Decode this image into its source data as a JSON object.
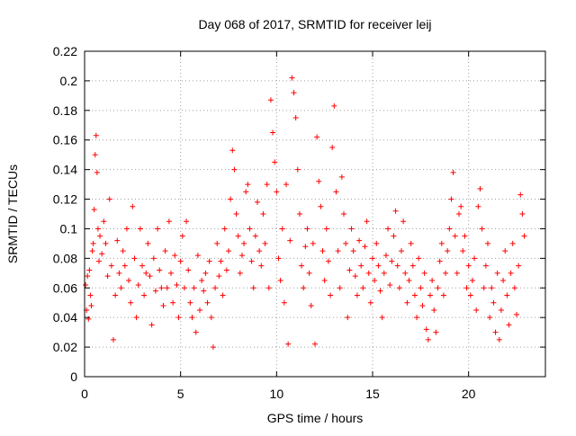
{
  "chart_data": {
    "type": "scatter",
    "title": "Day 068 of 2017, SRMTID for receiver leij",
    "xlabel": "GPS time / hours",
    "ylabel": "SRMTID / TECUs",
    "xlim": [
      0,
      24
    ],
    "ylim": [
      0,
      0.22
    ],
    "xticks": [
      0,
      5,
      10,
      15,
      20
    ],
    "xtick_labels": [
      "0",
      "5",
      "10",
      "15",
      "20"
    ],
    "yticks": [
      0,
      0.02,
      0.04,
      0.06,
      0.08,
      0.1,
      0.12,
      0.14,
      0.16,
      0.18,
      0.2,
      0.22
    ],
    "ytick_labels": [
      "0",
      "0.02",
      "0.04",
      "0.06",
      "0.08",
      "0.1",
      "0.12",
      "0.14",
      "0.16",
      "0.18",
      "0.2",
      "0.22"
    ],
    "grid": true,
    "legend": "none",
    "marker": "+",
    "marker_color": "#ff0000",
    "series": [
      {
        "points": [
          [
            0.05,
            0.062
          ],
          [
            0.1,
            0.045
          ],
          [
            0.15,
            0.068
          ],
          [
            0.2,
            0.039
          ],
          [
            0.25,
            0.072
          ],
          [
            0.3,
            0.055
          ],
          [
            0.35,
            0.048
          ],
          [
            0.4,
            0.085
          ],
          [
            0.45,
            0.09
          ],
          [
            0.5,
            0.113
          ],
          [
            0.55,
            0.15
          ],
          [
            0.6,
            0.163
          ],
          [
            0.65,
            0.138
          ],
          [
            0.7,
            0.1
          ],
          [
            0.75,
            0.078
          ],
          [
            0.8,
            0.095
          ],
          [
            0.9,
            0.083
          ],
          [
            1.0,
            0.105
          ],
          [
            1.1,
            0.09
          ],
          [
            1.2,
            0.068
          ],
          [
            1.3,
            0.12
          ],
          [
            1.4,
            0.075
          ],
          [
            1.5,
            0.025
          ],
          [
            1.6,
            0.055
          ],
          [
            1.7,
            0.092
          ],
          [
            1.8,
            0.07
          ],
          [
            1.9,
            0.06
          ],
          [
            2.0,
            0.085
          ],
          [
            2.1,
            0.075
          ],
          [
            2.2,
            0.1
          ],
          [
            2.3,
            0.065
          ],
          [
            2.4,
            0.05
          ],
          [
            2.5,
            0.115
          ],
          [
            2.6,
            0.08
          ],
          [
            2.7,
            0.04
          ],
          [
            2.8,
            0.062
          ],
          [
            2.9,
            0.1
          ],
          [
            3.0,
            0.075
          ],
          [
            3.1,
            0.055
          ],
          [
            3.2,
            0.07
          ],
          [
            3.3,
            0.09
          ],
          [
            3.4,
            0.068
          ],
          [
            3.5,
            0.035
          ],
          [
            3.6,
            0.08
          ],
          [
            3.7,
            0.058
          ],
          [
            3.8,
            0.1
          ],
          [
            3.9,
            0.072
          ],
          [
            4.0,
            0.06
          ],
          [
            4.1,
            0.048
          ],
          [
            4.2,
            0.085
          ],
          [
            4.3,
            0.06
          ],
          [
            4.4,
            0.105
          ],
          [
            4.5,
            0.07
          ],
          [
            4.6,
            0.05
          ],
          [
            4.7,
            0.082
          ],
          [
            4.8,
            0.062
          ],
          [
            4.9,
            0.04
          ],
          [
            5.0,
            0.078
          ],
          [
            5.1,
            0.095
          ],
          [
            5.2,
            0.06
          ],
          [
            5.3,
            0.105
          ],
          [
            5.4,
            0.072
          ],
          [
            5.5,
            0.05
          ],
          [
            5.6,
            0.04
          ],
          [
            5.7,
            0.06
          ],
          [
            5.8,
            0.03
          ],
          [
            5.9,
            0.082
          ],
          [
            6.0,
            0.045
          ],
          [
            6.1,
            0.065
          ],
          [
            6.2,
            0.058
          ],
          [
            6.3,
            0.07
          ],
          [
            6.4,
            0.05
          ],
          [
            6.5,
            0.078
          ],
          [
            6.6,
            0.04
          ],
          [
            6.7,
            0.02
          ],
          [
            6.8,
            0.06
          ],
          [
            6.9,
            0.09
          ],
          [
            7.0,
            0.068
          ],
          [
            7.1,
            0.078
          ],
          [
            7.2,
            0.055
          ],
          [
            7.3,
            0.1
          ],
          [
            7.4,
            0.072
          ],
          [
            7.5,
            0.085
          ],
          [
            7.6,
            0.12
          ],
          [
            7.7,
            0.153
          ],
          [
            7.8,
            0.14
          ],
          [
            7.9,
            0.11
          ],
          [
            8.0,
            0.095
          ],
          [
            8.1,
            0.07
          ],
          [
            8.2,
            0.082
          ],
          [
            8.3,
            0.09
          ],
          [
            8.4,
            0.125
          ],
          [
            8.5,
            0.13
          ],
          [
            8.6,
            0.1
          ],
          [
            8.7,
            0.078
          ],
          [
            8.8,
            0.06
          ],
          [
            8.9,
            0.095
          ],
          [
            9.0,
            0.118
          ],
          [
            9.1,
            0.085
          ],
          [
            9.2,
            0.075
          ],
          [
            9.3,
            0.11
          ],
          [
            9.4,
            0.09
          ],
          [
            9.5,
            0.13
          ],
          [
            9.6,
            0.06
          ],
          [
            9.7,
            0.187
          ],
          [
            9.8,
            0.165
          ],
          [
            9.9,
            0.145
          ],
          [
            10.0,
            0.125
          ],
          [
            10.1,
            0.08
          ],
          [
            10.2,
            0.065
          ],
          [
            10.3,
            0.1
          ],
          [
            10.4,
            0.05
          ],
          [
            10.5,
            0.13
          ],
          [
            10.6,
            0.022
          ],
          [
            10.7,
            0.092
          ],
          [
            10.8,
            0.202
          ],
          [
            10.9,
            0.192
          ],
          [
            11.0,
            0.175
          ],
          [
            11.1,
            0.14
          ],
          [
            11.2,
            0.11
          ],
          [
            11.3,
            0.075
          ],
          [
            11.4,
            0.06
          ],
          [
            11.5,
            0.088
          ],
          [
            11.6,
            0.1
          ],
          [
            11.7,
            0.07
          ],
          [
            11.8,
            0.048
          ],
          [
            11.9,
            0.09
          ],
          [
            12.0,
            0.022
          ],
          [
            12.1,
            0.162
          ],
          [
            12.2,
            0.132
          ],
          [
            12.3,
            0.115
          ],
          [
            12.4,
            0.085
          ],
          [
            12.5,
            0.065
          ],
          [
            12.6,
            0.1
          ],
          [
            12.7,
            0.078
          ],
          [
            12.8,
            0.055
          ],
          [
            12.9,
            0.155
          ],
          [
            13.0,
            0.183
          ],
          [
            13.1,
            0.125
          ],
          [
            13.2,
            0.085
          ],
          [
            13.3,
            0.06
          ],
          [
            13.4,
            0.135
          ],
          [
            13.5,
            0.11
          ],
          [
            13.6,
            0.09
          ],
          [
            13.7,
            0.04
          ],
          [
            13.8,
            0.072
          ],
          [
            13.9,
            0.1
          ],
          [
            14.0,
            0.085
          ],
          [
            14.1,
            0.068
          ],
          [
            14.2,
            0.055
          ],
          [
            14.3,
            0.092
          ],
          [
            14.4,
            0.075
          ],
          [
            14.5,
            0.06
          ],
          [
            14.6,
            0.088
          ],
          [
            14.7,
            0.105
          ],
          [
            14.8,
            0.07
          ],
          [
            14.9,
            0.05
          ],
          [
            15.0,
            0.08
          ],
          [
            15.1,
            0.065
          ],
          [
            15.2,
            0.09
          ],
          [
            15.3,
            0.075
          ],
          [
            15.4,
            0.058
          ],
          [
            15.5,
            0.04
          ],
          [
            15.6,
            0.07
          ],
          [
            15.7,
            0.082
          ],
          [
            15.8,
            0.1
          ],
          [
            15.9,
            0.062
          ],
          [
            16.0,
            0.078
          ],
          [
            16.1,
            0.095
          ],
          [
            16.2,
            0.112
          ],
          [
            16.3,
            0.075
          ],
          [
            16.4,
            0.06
          ],
          [
            16.5,
            0.085
          ],
          [
            16.6,
            0.105
          ],
          [
            16.7,
            0.07
          ],
          [
            16.8,
            0.05
          ],
          [
            16.9,
            0.065
          ],
          [
            17.0,
            0.09
          ],
          [
            17.1,
            0.075
          ],
          [
            17.2,
            0.055
          ],
          [
            17.3,
            0.04
          ],
          [
            17.4,
            0.08
          ],
          [
            17.5,
            0.06
          ],
          [
            17.6,
            0.048
          ],
          [
            17.7,
            0.07
          ],
          [
            17.8,
            0.032
          ],
          [
            17.9,
            0.025
          ],
          [
            18.0,
            0.055
          ],
          [
            18.1,
            0.065
          ],
          [
            18.2,
            0.045
          ],
          [
            18.3,
            0.03
          ],
          [
            18.4,
            0.06
          ],
          [
            18.5,
            0.078
          ],
          [
            18.6,
            0.09
          ],
          [
            18.7,
            0.055
          ],
          [
            18.8,
            0.07
          ],
          [
            18.9,
            0.085
          ],
          [
            19.0,
            0.1
          ],
          [
            19.1,
            0.12
          ],
          [
            19.2,
            0.138
          ],
          [
            19.3,
            0.095
          ],
          [
            19.4,
            0.07
          ],
          [
            19.5,
            0.11
          ],
          [
            19.6,
            0.115
          ],
          [
            19.7,
            0.085
          ],
          [
            19.8,
            0.095
          ],
          [
            19.9,
            0.06
          ],
          [
            20.0,
            0.075
          ],
          [
            20.1,
            0.055
          ],
          [
            20.2,
            0.065
          ],
          [
            20.3,
            0.08
          ],
          [
            20.4,
            0.045
          ],
          [
            20.5,
            0.115
          ],
          [
            20.6,
            0.127
          ],
          [
            20.7,
            0.1
          ],
          [
            20.8,
            0.06
          ],
          [
            20.9,
            0.075
          ],
          [
            21.0,
            0.09
          ],
          [
            21.1,
            0.04
          ],
          [
            21.2,
            0.06
          ],
          [
            21.3,
            0.05
          ],
          [
            21.4,
            0.03
          ],
          [
            21.5,
            0.07
          ],
          [
            21.6,
            0.025
          ],
          [
            21.7,
            0.045
          ],
          [
            21.8,
            0.065
          ],
          [
            21.9,
            0.085
          ],
          [
            22.0,
            0.055
          ],
          [
            22.1,
            0.035
          ],
          [
            22.2,
            0.07
          ],
          [
            22.3,
            0.09
          ],
          [
            22.4,
            0.06
          ],
          [
            22.5,
            0.042
          ],
          [
            22.6,
            0.075
          ],
          [
            22.7,
            0.123
          ],
          [
            22.8,
            0.11
          ],
          [
            22.9,
            0.095
          ]
        ]
      }
    ]
  }
}
